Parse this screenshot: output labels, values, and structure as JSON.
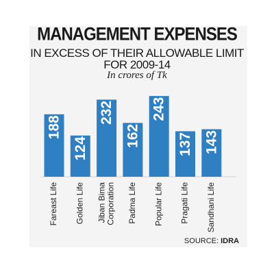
{
  "header": {
    "title": "MANAGEMENT EXPENSES",
    "subtitle_line1": "IN EXCESS OF THEIR ALLOWABLE LIMIT",
    "subtitle_line2": "FOR 2009-14",
    "units": "In crores of Tk"
  },
  "source": {
    "label": "SOURCE:",
    "name": "IDRA"
  },
  "colors": {
    "bar": "#2f7fc3",
    "bar_text": "#ffffff",
    "background": "#f4f4f4"
  },
  "chart_data": {
    "type": "bar",
    "title": "MANAGEMENT EXPENSES",
    "subtitle": "IN EXCESS OF THEIR ALLOWABLE LIMIT FOR 2009-14",
    "ylabel": "In crores of Tk",
    "xlabel": "",
    "categories": [
      [
        "Fareast Life"
      ],
      [
        "Golden Life"
      ],
      [
        "Jiban Bima",
        "Corporation"
      ],
      [
        "Padma Life"
      ],
      [
        "Popular Life"
      ],
      [
        "Pragati Life"
      ],
      [
        "Sandhani Life"
      ]
    ],
    "values": [
      188,
      124,
      232,
      162,
      243,
      137,
      143
    ],
    "value_labels": [
      "188",
      "124",
      "232",
      "162",
      "243",
      "137",
      "143"
    ],
    "grid": false,
    "legend": "none"
  }
}
